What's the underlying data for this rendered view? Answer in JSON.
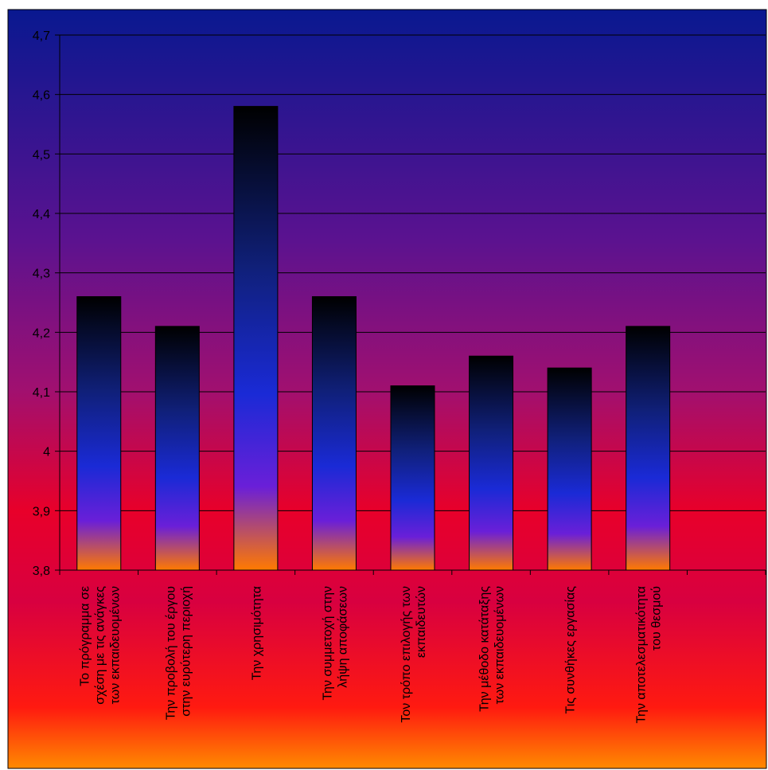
{
  "chart_data": {
    "type": "bar",
    "categories": [
      [
        "Το πρόγραμμα σε",
        "σχέση με τις ανάγκες",
        "των εκπαιδευομένων"
      ],
      [
        "Την προβολή του έργου",
        "στην ευρύτερη περιοχή"
      ],
      [
        "Την χρησιμότητα"
      ],
      [
        "Την συμμετοχή στην",
        "λήψη αποφάσεων"
      ],
      [
        "Τον τρόπο επιλογής των",
        "εκπαιδευτών"
      ],
      [
        "Την μέθοδο κατάταξης",
        "των εκπαιδευομένων"
      ],
      [
        "Τις συνθήκες εργασίας"
      ],
      [
        "Την αποτελεσματικότητα",
        "του θεσμού"
      ],
      [
        ""
      ]
    ],
    "values": [
      4.26,
      4.21,
      4.58,
      4.26,
      4.11,
      4.16,
      4.14,
      4.21,
      null
    ],
    "ylim": [
      3.8,
      4.7
    ],
    "yticks": [
      "3,8",
      "3,9",
      "4",
      "4,1",
      "4,2",
      "4,3",
      "4,4",
      "4,5",
      "4,6",
      "4,7"
    ],
    "grid": true,
    "legend": "none",
    "colors": {
      "bar_top": "#000000",
      "bar_mid": "#1a2ad6",
      "bar_low": "#6a1fd8",
      "bar_bottom": "#ff7a00",
      "bg_top": "#0a1a8a",
      "bg_mid": "#8a1a8a",
      "bg_red": "#e8002a",
      "bg_bottom": "#ff7a00",
      "grid": "#000000"
    }
  }
}
